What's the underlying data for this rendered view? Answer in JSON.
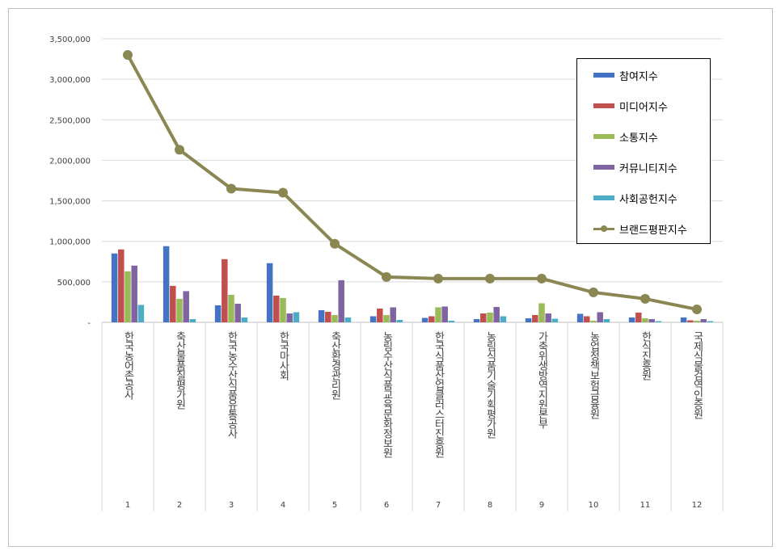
{
  "chart_data": {
    "type": "bar",
    "categories": [
      "한국농어촌공사",
      "축산물품질평가원",
      "한국농수산식품유통공사",
      "한국마사회",
      "축산환경관리원",
      "농림수산식품교육문화정보원",
      "한국식품산업클러스터진흥원",
      "농림식품기술기획평가원",
      "가축위생방역지원본부",
      "농업정책보험금융원",
      "한식진흥원",
      "국제식물검역인증원"
    ],
    "ranks": [
      "1",
      "2",
      "3",
      "4",
      "5",
      "6",
      "7",
      "8",
      "9",
      "10",
      "11",
      "12"
    ],
    "ylim": [
      0,
      3500000
    ],
    "yticks": [
      0,
      500000,
      1000000,
      1500000,
      2000000,
      2500000,
      3000000,
      3500000
    ],
    "ytick_labels": [
      "-",
      "500,000",
      "1,000,000",
      "1,500,000",
      "2,000,000",
      "2,500,000",
      "3,000,000",
      "3,500,000"
    ],
    "grid": true,
    "legend_position": "top-right",
    "series": [
      {
        "name": "참여지수",
        "kind": "bar",
        "color": "#4472c4",
        "values": [
          850000,
          940000,
          210000,
          730000,
          150000,
          75000,
          55000,
          40000,
          50000,
          105000,
          60000,
          60000
        ]
      },
      {
        "name": "미디어지수",
        "kind": "bar",
        "color": "#c0504d",
        "values": [
          900000,
          450000,
          780000,
          330000,
          130000,
          170000,
          75000,
          110000,
          90000,
          75000,
          120000,
          25000
        ]
      },
      {
        "name": "소통지수",
        "kind": "bar",
        "color": "#9bbb59",
        "values": [
          630000,
          290000,
          340000,
          300000,
          90000,
          90000,
          185000,
          120000,
          235000,
          20000,
          50000,
          20000
        ]
      },
      {
        "name": "커뮤니티지수",
        "kind": "bar",
        "color": "#8064a2",
        "values": [
          700000,
          385000,
          230000,
          110000,
          520000,
          185000,
          195000,
          190000,
          110000,
          125000,
          40000,
          40000
        ]
      },
      {
        "name": "사회공헌지수",
        "kind": "bar",
        "color": "#4bacc6",
        "values": [
          215000,
          40000,
          60000,
          125000,
          60000,
          30000,
          20000,
          75000,
          45000,
          40000,
          15000,
          15000
        ]
      },
      {
        "name": "브랜드평판지수",
        "kind": "line",
        "color": "#8a8753",
        "values": [
          3300000,
          2130000,
          1650000,
          1600000,
          970000,
          560000,
          540000,
          540000,
          540000,
          370000,
          290000,
          160000
        ]
      }
    ]
  }
}
